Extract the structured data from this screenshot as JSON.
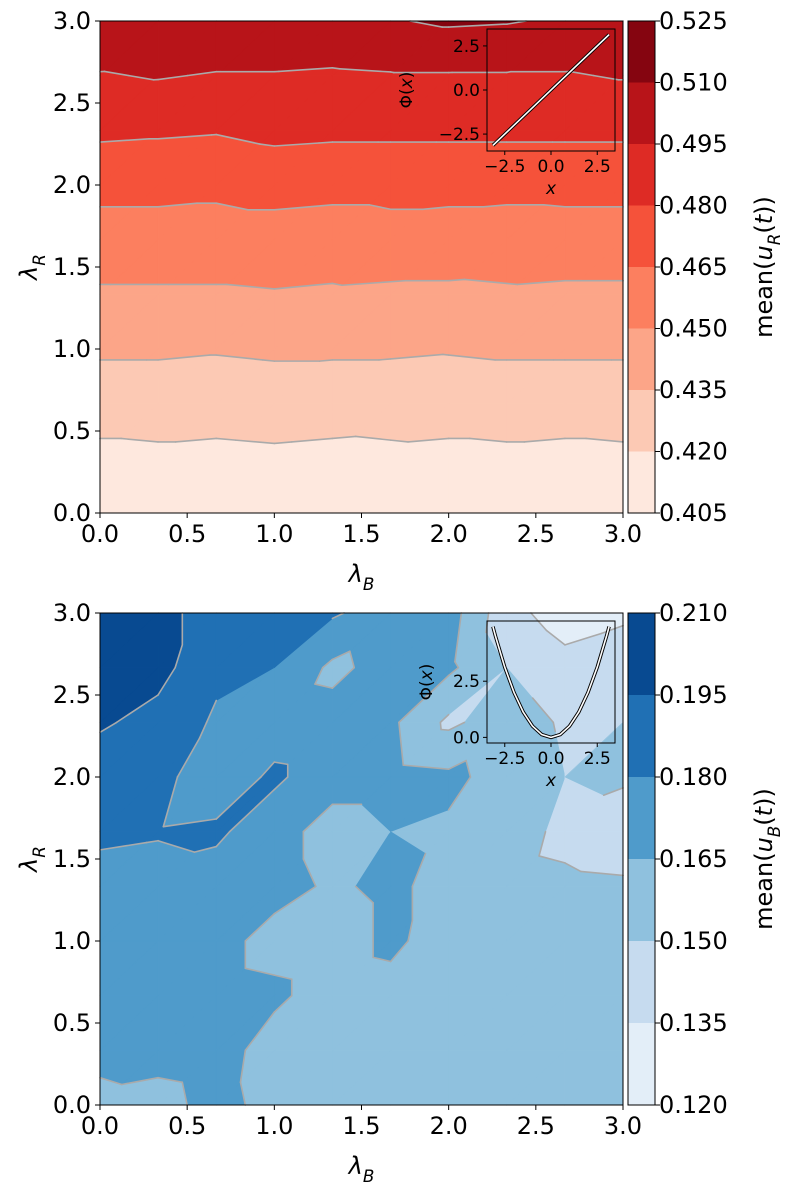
{
  "chart_data": [
    {
      "type": "contour",
      "xlabel": {
        "symbol": "λ",
        "sub": "B"
      },
      "ylabel": {
        "symbol": "λ",
        "sub": "R"
      },
      "xlim": [
        0,
        3
      ],
      "ylim": [
        0,
        3
      ],
      "xticks": [
        {
          "value": 0,
          "label": "0.0"
        },
        0.5,
        {
          "value": 1,
          "label": "1.0"
        },
        1.5,
        {
          "value": 2,
          "label": "2.0"
        },
        2.5,
        {
          "value": 3,
          "label": "3.0"
        }
      ],
      "yticks": [
        {
          "value": 0,
          "label": "0.0"
        },
        0.5,
        {
          "value": 1,
          "label": "1.0"
        },
        1.5,
        {
          "value": 2,
          "label": "2.0"
        },
        2.5,
        {
          "value": 3,
          "label": "3.0"
        }
      ],
      "x": [
        0,
        0.333,
        0.667,
        1,
        1.333,
        1.667,
        2,
        2.333,
        2.667,
        3
      ],
      "y": [
        0,
        0.333,
        0.667,
        1,
        1.333,
        1.667,
        2,
        2.333,
        2.667,
        3
      ],
      "z": [
        [
          0.406,
          0.406,
          0.406,
          0.406,
          0.406,
          0.406,
          0.406,
          0.406,
          0.406,
          0.406
        ],
        [
          0.416,
          0.417,
          0.416,
          0.417,
          0.416,
          0.417,
          0.416,
          0.417,
          0.416,
          0.417
        ],
        [
          0.427,
          0.427,
          0.427,
          0.428,
          0.427,
          0.426,
          0.427,
          0.427,
          0.427,
          0.427
        ],
        [
          0.437,
          0.437,
          0.436,
          0.437,
          0.437,
          0.437,
          0.436,
          0.437,
          0.437,
          0.437
        ],
        [
          0.448,
          0.448,
          0.448,
          0.449,
          0.448,
          0.447,
          0.447,
          0.448,
          0.447,
          0.447
        ],
        [
          0.459,
          0.459,
          0.459,
          0.459,
          0.458,
          0.46,
          0.459,
          0.458,
          0.459,
          0.459
        ],
        [
          0.469,
          0.469,
          0.468,
          0.47,
          0.469,
          0.469,
          0.469,
          0.469,
          0.469,
          0.469
        ],
        [
          0.483,
          0.482,
          0.481,
          0.484,
          0.483,
          0.483,
          0.483,
          0.483,
          0.483,
          0.483
        ],
        [
          0.494,
          0.496,
          0.494,
          0.494,
          0.493,
          0.494,
          0.494,
          0.494,
          0.494,
          0.496
        ],
        [
          0.508,
          0.507,
          0.508,
          0.508,
          0.507,
          0.509,
          0.512,
          0.511,
          0.508,
          0.507
        ]
      ],
      "levels": [
        0.405,
        {
          "value": 0.42,
          "label": "0.420"
        },
        0.435,
        {
          "value": 0.45,
          "label": "0.450"
        },
        0.465,
        {
          "value": 0.48,
          "label": "0.480"
        },
        0.495,
        {
          "value": 0.51,
          "label": "0.510"
        },
        0.525
      ],
      "colors": [
        "#fee8de",
        "#fcc9b4",
        "#fca588",
        "#fc7f5f",
        "#f5523a",
        "#de2b25",
        "#b81419",
        "#850510"
      ],
      "line_color": "#aaaaaa",
      "colorbar_label": [
        "mean(",
        "u",
        "R",
        "(",
        "t",
        "))"
      ],
      "inset": {
        "type": "line",
        "x": [
          -3.14,
          3.14
        ],
        "y": [
          -3.14,
          3.14
        ],
        "xlim": [
          -3.46,
          3.46
        ],
        "ylim": [
          -3.46,
          3.46
        ],
        "xticks": [
          {
            "value": -2.5,
            "label": "−2.5"
          },
          {
            "value": 0,
            "label": "0.0"
          },
          2.5
        ],
        "yticks": [
          {
            "value": -2.5,
            "label": "−2.5"
          },
          {
            "value": 0,
            "label": "0.0"
          },
          2.5
        ],
        "xlabel": "x",
        "ylabel": [
          "Φ(",
          "x",
          ")"
        ],
        "color": "#ffffff",
        "edge_color": "#000000"
      }
    },
    {
      "type": "contour",
      "xlabel": {
        "symbol": "λ",
        "sub": "B"
      },
      "ylabel": {
        "symbol": "λ",
        "sub": "R"
      },
      "xlim": [
        0,
        3
      ],
      "ylim": [
        0,
        3
      ],
      "xticks": [
        {
          "value": 0,
          "label": "0.0"
        },
        0.5,
        {
          "value": 1,
          "label": "1.0"
        },
        1.5,
        {
          "value": 2,
          "label": "2.0"
        },
        2.5,
        {
          "value": 3,
          "label": "3.0"
        }
      ],
      "yticks": [
        {
          "value": 0,
          "label": "0.0"
        },
        0.5,
        {
          "value": 1,
          "label": "1.0"
        },
        1.5,
        {
          "value": 2,
          "label": "2.0"
        },
        2.5,
        {
          "value": 3,
          "label": "3.0"
        }
      ],
      "x": [
        0,
        0.333,
        0.667,
        1,
        1.333,
        1.667,
        2,
        2.333,
        2.667,
        3
      ],
      "y": [
        0,
        0.333,
        0.667,
        1,
        1.333,
        1.667,
        2,
        2.333,
        2.667,
        3
      ],
      "z": [
        [
          0.162,
          0.16,
          0.17,
          0.16,
          0.158,
          0.158,
          0.157,
          0.156,
          0.155,
          0.155
        ],
        [
          0.168,
          0.17,
          0.172,
          0.158,
          0.162,
          0.16,
          0.158,
          0.156,
          0.156,
          0.158
        ],
        [
          0.172,
          0.17,
          0.17,
          0.168,
          0.158,
          0.16,
          0.158,
          0.155,
          0.155,
          0.158
        ],
        [
          0.172,
          0.172,
          0.17,
          0.16,
          0.158,
          0.168,
          0.158,
          0.158,
          0.155,
          0.155
        ],
        [
          0.176,
          0.175,
          0.172,
          0.17,
          0.163,
          0.168,
          0.16,
          0.155,
          0.153,
          0.152
        ],
        [
          0.182,
          0.181,
          0.183,
          0.17,
          0.16,
          0.165,
          0.163,
          0.158,
          0.146,
          0.142
        ],
        [
          0.186,
          0.185,
          0.17,
          0.183,
          0.17,
          0.17,
          0.168,
          0.16,
          0.15,
          0.152
        ],
        [
          0.197,
          0.19,
          0.178,
          0.172,
          0.17,
          0.168,
          0.147,
          0.158,
          0.148,
          0.15
        ],
        [
          0.196,
          0.2,
          0.183,
          0.18,
          0.162,
          0.17,
          0.168,
          0.15,
          0.14,
          0.145
        ],
        [
          0.205,
          0.2,
          0.188,
          0.185,
          0.182,
          0.172,
          0.172,
          0.14,
          0.128,
          0.132
        ]
      ],
      "levels": [
        {
          "value": 0.12,
          "label": "0.120"
        },
        0.135,
        {
          "value": 0.15,
          "label": "0.150"
        },
        0.165,
        {
          "value": 0.18,
          "label": "0.180"
        },
        0.195,
        {
          "value": 0.21,
          "label": "0.210"
        }
      ],
      "colors": [
        "#e3eef8",
        "#c6dbef",
        "#8fc1de",
        "#4f9bcb",
        "#2070b4",
        "#084a91"
      ],
      "line_color": "#aaaaaa",
      "colorbar_label": [
        "mean(",
        "u",
        "B",
        "(",
        "t",
        "))"
      ],
      "inset": {
        "type": "line",
        "x": [
          -3.14,
          -3,
          -2.5,
          -2,
          -1.5,
          -1,
          -0.5,
          0,
          0.5,
          1,
          1.5,
          2,
          2.5,
          3,
          3.14
        ],
        "y": [
          4.93,
          4.5,
          3.125,
          2,
          1.125,
          0.5,
          0.125,
          0,
          0.125,
          0.5,
          1.125,
          2,
          3.125,
          4.5,
          4.93
        ],
        "xlim": [
          -3.46,
          3.46
        ],
        "ylim": [
          -0.25,
          5.18
        ],
        "xticks": [
          {
            "value": -2.5,
            "label": "−2.5"
          },
          {
            "value": 0,
            "label": "0.0"
          },
          2.5
        ],
        "yticks": [
          {
            "value": 0,
            "label": "0.0"
          },
          2.5
        ],
        "xlabel": "x",
        "ylabel": [
          "Φ(",
          "x",
          ")"
        ],
        "color": "#ffffff",
        "edge_color": "#000000"
      }
    }
  ]
}
